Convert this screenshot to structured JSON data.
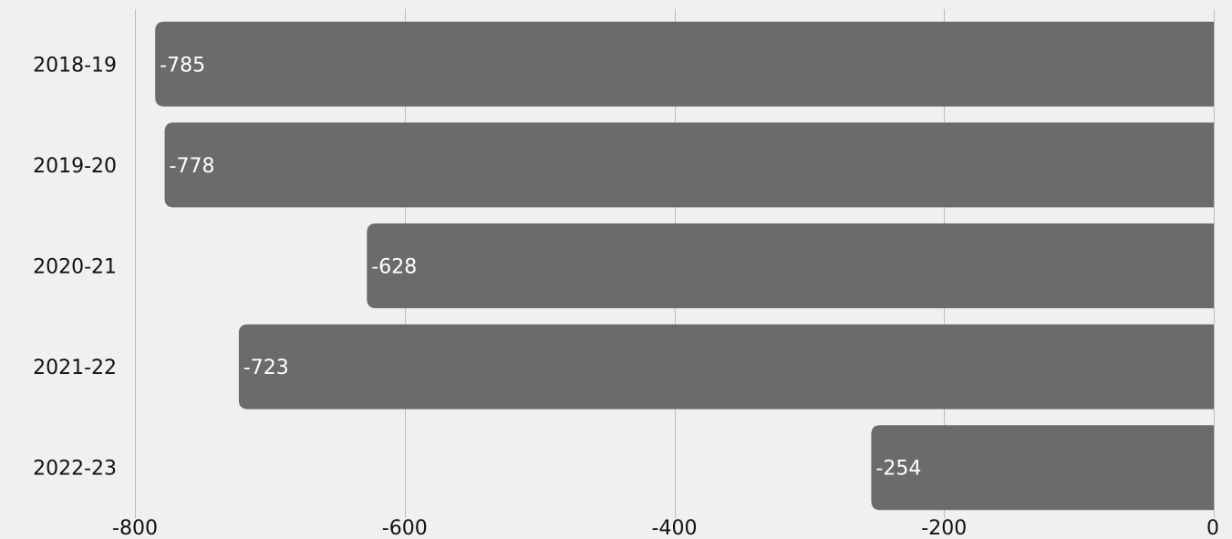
{
  "chart_data": {
    "type": "bar",
    "orientation": "horizontal",
    "categories": [
      "2018-19",
      "2019-20",
      "2020-21",
      "2021-22",
      "2022-23"
    ],
    "values": [
      -785,
      -778,
      -628,
      -723,
      -254
    ],
    "data_labels": [
      "-785",
      "-778",
      "-628",
      "-723",
      "-254"
    ],
    "x_ticks": [
      -800,
      -600,
      -400,
      -200,
      0
    ],
    "x_tick_labels": [
      "-800",
      "-600",
      "-400",
      "-200",
      "0"
    ],
    "xlim": [
      -800,
      0
    ],
    "grid": true,
    "legend": "none",
    "bar_color": "#6b6b6b",
    "background_color": "#f0f0f0",
    "data_label_color": "#ffffff",
    "title": "",
    "xlabel": "",
    "ylabel": ""
  }
}
